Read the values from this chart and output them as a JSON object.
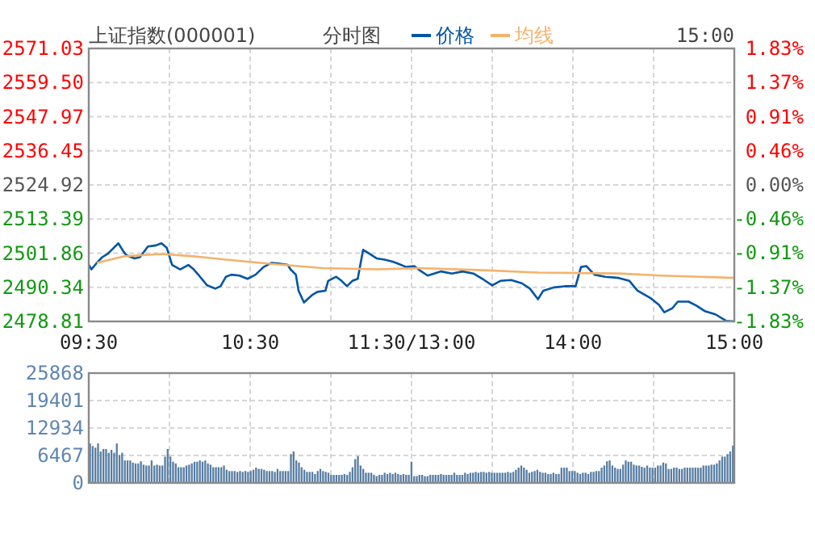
{
  "chart_data": [
    {
      "type": "line",
      "title": "上证指数(000001)",
      "subtitle": "分时图",
      "annotations": [
        "15:00"
      ],
      "legend": "top",
      "grid": true,
      "categories": [
        "09:30",
        null,
        null,
        null,
        null,
        null,
        null,
        null,
        null,
        null,
        null,
        null,
        null,
        null,
        null,
        null,
        null,
        null,
        null,
        null,
        null,
        null,
        null,
        null,
        null,
        null,
        null,
        null,
        null,
        null,
        null,
        null,
        null,
        null,
        null,
        null,
        null,
        null,
        null,
        null,
        null,
        null,
        null,
        null,
        null,
        null,
        null,
        null,
        null,
        null,
        null,
        null,
        null,
        null,
        null,
        null,
        null,
        null,
        null,
        null,
        "10:30",
        null,
        null,
        null,
        null,
        null,
        null,
        null,
        null,
        null,
        null,
        null,
        null,
        null,
        null,
        null,
        null,
        null,
        null,
        null,
        null,
        null,
        null,
        null,
        null,
        null,
        null,
        null,
        null,
        null,
        null,
        null,
        null,
        null,
        null,
        null,
        null,
        null,
        null,
        null,
        null,
        null,
        null,
        null,
        null,
        null,
        null,
        null,
        null,
        null,
        null,
        null,
        null,
        null,
        null,
        null,
        null,
        null,
        null,
        null,
        "11:30/13:00",
        null,
        null,
        null,
        null,
        null,
        null,
        null,
        null,
        null,
        null,
        null,
        null,
        null,
        null,
        null,
        null,
        null,
        null,
        null,
        null,
        null,
        null,
        null,
        null,
        null,
        null,
        null,
        null,
        null,
        null,
        null,
        null,
        null,
        null,
        null,
        null,
        null,
        null,
        null,
        null,
        null,
        null,
        null,
        null,
        null,
        null,
        null,
        null,
        null,
        null,
        null,
        null,
        null,
        null,
        null,
        null,
        null,
        null,
        null,
        "14:00",
        null,
        null,
        null,
        null,
        null,
        null,
        null,
        null,
        null,
        null,
        null,
        null,
        null,
        null,
        null,
        null,
        null,
        null,
        null,
        null,
        null,
        null,
        null,
        null,
        null,
        null,
        null,
        null,
        null,
        null,
        null,
        null,
        null,
        null,
        null,
        null,
        null,
        null,
        null,
        null,
        null,
        null,
        null,
        null,
        null,
        null,
        null,
        null,
        null,
        null,
        null,
        null,
        null,
        null,
        null,
        null,
        null,
        null,
        null,
        "15:00"
      ],
      "ylim": [
        2478.81,
        2571.03
      ],
      "yticks": [
        {
          "value": 2478.81,
          "label": "2478.81"
        },
        {
          "value": 2490.34,
          "label": "2490.34"
        },
        {
          "value": 2501.86,
          "label": "2501.86"
        },
        {
          "value": 2513.39,
          "label": "2513.39"
        },
        {
          "value": 2524.92,
          "label": "2524.92"
        },
        {
          "value": 2536.45,
          "label": "2536.45"
        },
        {
          "value": 2547.97,
          "label": "2547.97"
        },
        {
          "value": 2559.5,
          "label": "2559.50"
        },
        {
          "value": 2571.03,
          "label": "2571.03"
        }
      ],
      "y2lim": [
        -1.83,
        1.83
      ],
      "y2ticks": [
        {
          "value": -1.83,
          "label": "-1.83%"
        },
        {
          "value": -1.37,
          "label": "-1.37%"
        },
        {
          "value": -0.91,
          "label": "-0.91%"
        },
        {
          "value": -0.46,
          "label": "-0.46%"
        },
        {
          "value": 0,
          "label": "0.00%"
        },
        {
          "value": 0.46,
          "label": "0.46%"
        },
        {
          "value": 0.91,
          "label": "0.91%"
        },
        {
          "value": 1.37,
          "label": "1.37%"
        },
        {
          "value": 1.83,
          "label": "1.83%"
        }
      ],
      "series": [
        {
          "name": "价格",
          "color": "#0055a5",
          "values": [
            2497.9,
            2496.4,
            null,
            2498.6,
            null,
            2500.5,
            null,
            2501.6,
            null,
            2503.4,
            null,
            2505.2,
            null,
            2502.3,
            2501.2,
            null,
            null,
            2500.1,
            null,
            2500.5,
            null,
            null,
            2504.1,
            null,
            null,
            2504.5,
            null,
            2505.2,
            null,
            2503.7,
            null,
            2497.9,
            null,
            null,
            2496.4,
            null,
            null,
            2497.9,
            null,
            2496.4,
            null,
            2494.3,
            null,
            null,
            2491.0,
            null,
            null,
            2489.9,
            null,
            2490.7,
            null,
            2493.9,
            null,
            2494.6,
            null,
            null,
            2494.3,
            null,
            null,
            2493.2,
            null,
            null,
            2494.6,
            null,
            null,
            2497.2,
            null,
            null,
            2498.6,
            null,
            null,
            2498.3,
            null,
            null,
            2497.9,
            2496.4,
            null,
            2494.6,
            2489.2,
            null,
            2485.2,
            null,
            null,
            2487.7,
            null,
            2488.8,
            null,
            null,
            2489.2,
            2492.5,
            null,
            null,
            2493.9,
            null,
            2492.5,
            null,
            2490.7,
            null,
            2492.5,
            null,
            2493.2,
            null,
            2503.0,
            null,
            2501.9,
            null,
            null,
            2500.1,
            null,
            null,
            2499.7,
            null,
            null,
            2499.0,
            null,
            2498.3,
            null,
            null,
            2497.2,
            null,
            null,
            2497.5,
            null,
            2496.1,
            null,
            null,
            2494.3,
            null,
            null,
            null,
            null,
            2495.7,
            null,
            null,
            null,
            2495.0,
            null,
            null,
            null,
            2495.7,
            null,
            null,
            null,
            2495.0,
            null,
            null,
            null,
            2492.8,
            null,
            null,
            2491.0,
            null,
            null,
            2492.5,
            null,
            null,
            null,
            2492.8,
            null,
            null,
            null,
            2491.7,
            null,
            null,
            2489.9,
            null,
            null,
            2486.3,
            null,
            2489.2,
            null,
            null,
            null,
            2490.3,
            null,
            null,
            null,
            2490.7,
            null,
            null,
            null,
            2490.7,
            null,
            2497.2,
            null,
            2497.5,
            null,
            null,
            2494.6,
            null,
            null,
            null,
            2493.9,
            null,
            null,
            null,
            null,
            2493.5,
            null,
            null,
            null,
            2492.5,
            null,
            null,
            2489.2,
            null,
            null,
            null,
            null,
            2486.6,
            null,
            null,
            2484.4,
            null,
            2481.9,
            null,
            null,
            2483.3,
            null,
            2485.5,
            null,
            null,
            null,
            2485.5,
            null,
            null,
            2484.1,
            null,
            null,
            2482.3,
            null,
            null,
            null,
            2481.2,
            null,
            null,
            null,
            2479.0,
            null,
            null,
            2478.81
          ]
        },
        {
          "name": "均线",
          "color": "#f5b26b",
          "values": [
            null,
            null,
            null,
            2498.6,
            null,
            null,
            null,
            null,
            null,
            null,
            null,
            null,
            null,
            2500.8,
            null,
            null,
            null,
            null,
            null,
            null,
            null,
            null,
            null,
            null,
            null,
            null,
            null,
            2501.6,
            null,
            null,
            null,
            null,
            null,
            null,
            null,
            null,
            null,
            null,
            null,
            2500.8,
            null,
            null,
            null,
            null,
            null,
            null,
            null,
            null,
            null,
            null,
            null,
            2499.7,
            null,
            null,
            null,
            null,
            null,
            null,
            null,
            null,
            null,
            null,
            null,
            null,
            null,
            null,
            null,
            2498.3,
            null,
            null,
            null,
            null,
            null,
            null,
            null,
            null,
            null,
            null,
            null,
            null,
            null,
            null,
            null,
            null,
            null,
            null,
            null,
            2496.8,
            null,
            null,
            null,
            null,
            null,
            null,
            null,
            null,
            null,
            null,
            null,
            null,
            null,
            null,
            null,
            null,
            null,
            null,
            null,
            2496.4,
            null,
            null,
            null,
            null,
            null,
            null,
            null,
            null,
            null,
            null,
            null,
            null,
            null,
            null,
            null,
            2496.8,
            null,
            null,
            null,
            null,
            null,
            null,
            null,
            null,
            null,
            null,
            null,
            null,
            null,
            null,
            null,
            null,
            null,
            null,
            null,
            null,
            null,
            null,
            null,
            2496.1,
            null,
            null,
            null,
            null,
            null,
            null,
            null,
            null,
            null,
            null,
            null,
            null,
            null,
            null,
            null,
            null,
            null,
            null,
            null,
            2495.3,
            null,
            null,
            null,
            null,
            null,
            null,
            null,
            null,
            null,
            null,
            null,
            null,
            null,
            null,
            null,
            null,
            null,
            null,
            null,
            null,
            null,
            null,
            null,
            null,
            null,
            null,
            null,
            null,
            null,
            2495.0,
            null,
            null,
            null,
            null,
            null,
            null,
            null,
            null,
            null,
            null,
            null,
            null,
            null,
            null,
            null,
            2494.3,
            null,
            null,
            null,
            null,
            null,
            null,
            null,
            null,
            null,
            null,
            null,
            null,
            null,
            null,
            null,
            null,
            null,
            null,
            null,
            null,
            null,
            null,
            null,
            null,
            null,
            null,
            2493.5
          ]
        }
      ]
    },
    {
      "type": "bar",
      "grid": true,
      "tick_labels": "y",
      "color": "#587ea3",
      "categories": [
        null,
        null,
        null,
        null,
        null,
        null,
        null,
        null,
        null,
        null,
        null,
        null,
        null,
        null,
        null,
        null,
        null,
        null,
        null,
        null,
        null,
        null,
        null,
        null,
        null,
        null,
        null,
        null,
        null,
        null,
        null,
        null,
        null,
        null,
        null,
        null,
        null,
        null,
        null,
        null,
        null,
        null,
        null,
        null,
        null,
        null,
        null,
        null,
        null,
        null,
        null,
        null,
        null,
        null,
        null,
        null,
        null,
        null,
        null,
        null,
        null,
        null,
        null,
        null,
        null,
        null,
        null,
        null,
        null,
        null,
        null,
        null,
        null,
        null,
        null,
        null,
        null,
        null,
        null,
        null,
        null,
        null,
        null,
        null,
        null,
        null,
        null,
        null,
        null,
        null,
        null,
        null,
        null,
        null,
        null,
        null,
        null,
        null,
        null,
        null,
        null,
        null,
        null,
        null,
        null,
        null,
        null,
        null,
        null,
        null,
        null,
        null,
        null,
        null,
        null,
        null,
        null,
        null,
        null,
        null,
        null,
        null,
        null,
        null,
        null,
        null,
        null,
        null,
        null,
        null,
        null,
        null,
        null,
        null,
        null,
        null,
        null,
        null,
        null,
        null,
        null,
        null,
        null,
        null,
        null,
        null,
        null,
        null,
        null,
        null,
        null,
        null,
        null,
        null,
        null,
        null,
        null,
        null,
        null,
        null,
        null,
        null,
        null,
        null,
        null,
        null,
        null,
        null,
        null,
        null,
        null,
        null,
        null,
        null,
        null,
        null,
        null,
        null,
        null,
        null,
        null,
        null,
        null,
        null,
        null,
        null,
        null,
        null,
        null,
        null,
        null,
        null,
        null,
        null,
        null,
        null,
        null,
        null,
        null,
        null,
        null,
        null,
        null,
        null,
        null,
        null,
        null,
        null,
        null,
        null,
        null,
        null,
        null,
        null,
        null,
        null,
        null,
        null,
        null,
        null,
        null,
        null,
        null,
        null,
        null,
        null,
        null,
        null,
        null,
        null,
        null,
        null,
        null,
        null,
        null,
        null,
        null,
        null,
        null,
        null,
        null
      ],
      "values": [
        9300,
        8700,
        8300,
        9300,
        7400,
        8000,
        8000,
        7100,
        7800,
        7100,
        9300,
        6600,
        7100,
        5300,
        5300,
        5300,
        4800,
        4600,
        4600,
        5100,
        4300,
        4100,
        4100,
        5300,
        4100,
        4300,
        4100,
        4100,
        6200,
        8000,
        6200,
        5000,
        4600,
        3700,
        3700,
        3700,
        4100,
        4300,
        4600,
        5000,
        5000,
        5300,
        5000,
        5300,
        4600,
        4300,
        3700,
        3700,
        3700,
        3700,
        4100,
        3100,
        2800,
        2800,
        2800,
        2600,
        2800,
        2600,
        2800,
        2600,
        2800,
        3100,
        3600,
        3300,
        3300,
        3100,
        2800,
        2800,
        2800,
        2600,
        3300,
        2800,
        2800,
        2800,
        2800,
        6800,
        7400,
        5300,
        4800,
        3700,
        3100,
        2600,
        2600,
        2600,
        2100,
        2800,
        3300,
        2800,
        2600,
        2400,
        1900,
        1900,
        1900,
        1900,
        1900,
        2100,
        1900,
        2600,
        3700,
        5600,
        6300,
        4100,
        3300,
        2400,
        2400,
        2400,
        1900,
        1600,
        1900,
        1900,
        2400,
        2100,
        2400,
        2100,
        2400,
        2100,
        1900,
        2100,
        1900,
        1900,
        5000,
        1600,
        1600,
        1900,
        1900,
        1600,
        1600,
        1900,
        1900,
        1900,
        1900,
        2100,
        1900,
        1900,
        1900,
        1900,
        2400,
        1900,
        1900,
        1900,
        2400,
        2100,
        2400,
        2400,
        2600,
        2400,
        2600,
        2600,
        2400,
        2600,
        2400,
        2400,
        2400,
        2400,
        2400,
        2400,
        2600,
        2400,
        2600,
        3100,
        3600,
        4100,
        3600,
        3100,
        2400,
        2600,
        2800,
        3100,
        2600,
        2400,
        2400,
        2100,
        2100,
        2400,
        2100,
        2100,
        3600,
        3600,
        3600,
        2800,
        2800,
        2800,
        2400,
        2100,
        2400,
        2400,
        2100,
        2600,
        2600,
        2800,
        2800,
        3600,
        4100,
        5100,
        5300,
        4100,
        3600,
        3300,
        3300,
        4300,
        5300,
        5000,
        5000,
        4300,
        4100,
        4100,
        3800,
        3600,
        4100,
        3600,
        3600,
        3600,
        4100,
        4100,
        4800,
        4600,
        3300,
        3300,
        3600,
        3600,
        3300,
        3300,
        3600,
        3600,
        3600,
        3600,
        3600,
        3600,
        3600,
        4100,
        4100,
        4100,
        4300,
        4300,
        4600,
        5300,
        6200,
        6200,
        6800,
        7400,
        8800
      ],
      "ylim": [
        0,
        25868
      ],
      "yticks": [
        0,
        6467,
        12934,
        19401,
        25868
      ]
    }
  ]
}
